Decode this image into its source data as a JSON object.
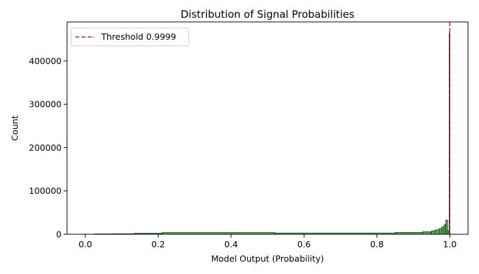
{
  "chart_data": {
    "type": "bar",
    "title": "Distribution of Signal Probabilities",
    "xlabel": "Model Output (Probability)",
    "ylabel": "Count",
    "xlim": [
      -0.05,
      1.05
    ],
    "ylim": [
      0,
      490000
    ],
    "x_ticks": [
      0.0,
      0.2,
      0.4,
      0.6,
      0.8,
      1.0
    ],
    "x_tick_labels": [
      "0.0",
      "0.2",
      "0.4",
      "0.6",
      "0.8",
      "1.0"
    ],
    "y_ticks": [
      0,
      100000,
      200000,
      300000,
      400000
    ],
    "y_tick_labels": [
      "0",
      "100000",
      "200000",
      "300000",
      "400000"
    ],
    "grid": false,
    "legend_position": "top-left",
    "bar_color": "#4caf50",
    "bar_edge_color": "#000000",
    "threshold": {
      "label": "Threshold 0.9999",
      "value": 0.9999,
      "color": "#d62728",
      "style": "dashed"
    },
    "bins": [
      {
        "range": [
          0.025,
          0.075
        ],
        "count": 800
      },
      {
        "range": [
          0.075,
          0.135
        ],
        "count": 1200
      },
      {
        "range": [
          0.135,
          0.21
        ],
        "count": 2500
      },
      {
        "range": [
          0.21,
          0.52
        ],
        "count": 4000
      },
      {
        "range": [
          0.52,
          0.85
        ],
        "count": 3000
      },
      {
        "range": [
          0.85,
          0.925
        ],
        "count": 4200
      },
      {
        "range": [
          0.925,
          0.95
        ],
        "count": 6000
      },
      {
        "range": [
          0.95,
          0.96
        ],
        "count": 8000
      },
      {
        "range": [
          0.96,
          0.97
        ],
        "count": 10000
      },
      {
        "range": [
          0.97,
          0.978
        ],
        "count": 13000
      },
      {
        "range": [
          0.978,
          0.984
        ],
        "count": 17000
      },
      {
        "range": [
          0.984,
          0.989
        ],
        "count": 22000
      },
      {
        "range": [
          0.989,
          0.994
        ],
        "count": 33000
      },
      {
        "range": [
          0.994,
          0.998
        ],
        "count": 8000
      },
      {
        "range": [
          0.998,
          1.0
        ],
        "count": 465000
      }
    ]
  }
}
